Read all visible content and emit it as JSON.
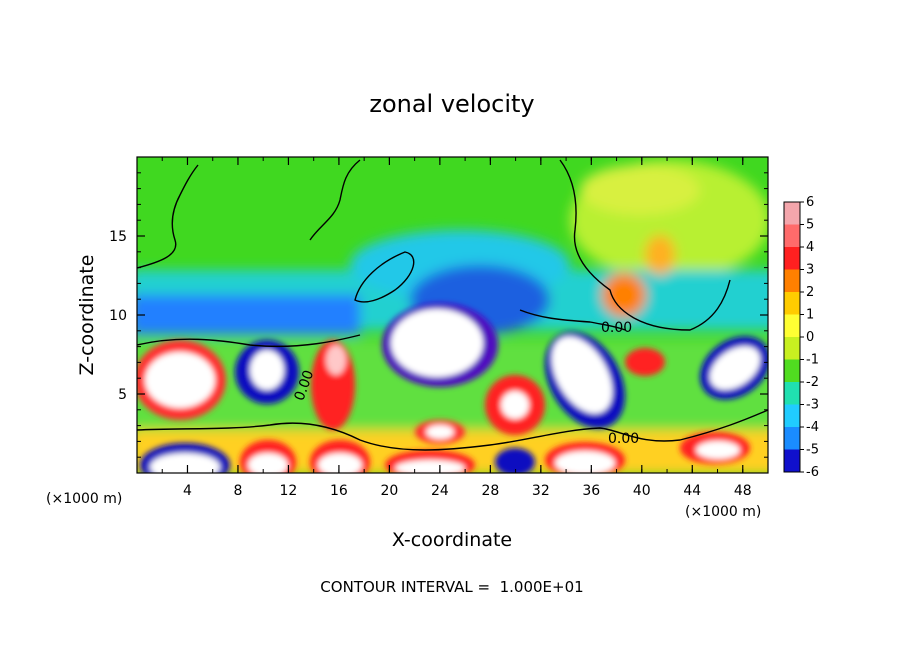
{
  "chart_data": {
    "type": "heatmap",
    "title": "zonal velocity",
    "xlabel": "X-coordinate",
    "ylabel": "Z-coordinate",
    "x_unit": "(×1000 m)",
    "x_unit_right": "(×1000 m)",
    "xlim": [
      0,
      50
    ],
    "ylim": [
      0,
      20
    ],
    "x_ticks": [
      4,
      8,
      12,
      16,
      20,
      24,
      28,
      32,
      36,
      40,
      44,
      48
    ],
    "y_ticks": [
      5,
      10,
      15
    ],
    "colorbar": {
      "ticks": [
        6,
        5,
        4,
        3,
        2,
        1,
        0,
        -1,
        -2,
        -3,
        -4,
        -5,
        -6
      ],
      "colors": [
        "#f4a6ac",
        "#ff6b6b",
        "#ff2020",
        "#ff8000",
        "#ffcc00",
        "#ffff33",
        "#c8f020",
        "#50dd20",
        "#20e0b0",
        "#20ccff",
        "#1a8cff",
        "#1010cc",
        "#7a1aa0"
      ],
      "above_max_color": "#ffffff"
    },
    "contour_labels": [
      "0.00",
      "0.00",
      "0.00"
    ],
    "note": "CONTOUR INTERVAL =  1.000E+01",
    "grid": false,
    "legend_placement": "right colorbar"
  }
}
